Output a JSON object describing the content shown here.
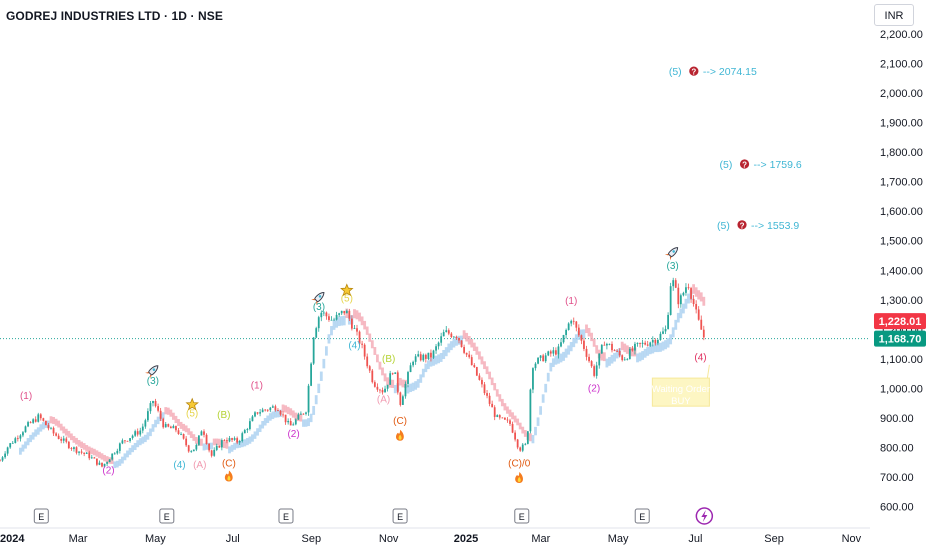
{
  "header": {
    "title": "GODREJ INDUSTRIES LTD · 1D · NSE",
    "currency": "INR"
  },
  "colors": {
    "up": "#26a69a",
    "down": "#ef5350",
    "ma_bull": "#a9cff0",
    "ma_bear": "#f4a9b4",
    "grid_dash": "#26a69a",
    "price_badge_down": "#f23645",
    "price_badge_last": "#089981",
    "target_text": "#3fb6d4"
  },
  "chart_data": {
    "type": "candlestick",
    "y_ticks": [
      "600.00",
      "700.00",
      "800.00",
      "900.00",
      "1,000.00",
      "1,100.00",
      "1,200.00",
      "1,300.00",
      "1,400.00",
      "1,500.00",
      "1,600.00",
      "1,700.00",
      "1,800.00",
      "1,900.00",
      "2,000.00",
      "2,100.00",
      "2,200.00"
    ],
    "x_ticks": [
      {
        "label": "2024",
        "x": "2024-01-01",
        "bold": true
      },
      {
        "label": "Mar",
        "x": "2024-03-01"
      },
      {
        "label": "May",
        "x": "2024-05-01"
      },
      {
        "label": "Jul",
        "x": "2024-07-01"
      },
      {
        "label": "Sep",
        "x": "2024-09-01"
      },
      {
        "label": "Nov",
        "x": "2024-11-01"
      },
      {
        "label": "2025",
        "x": "2025-01-01",
        "bold": true
      },
      {
        "label": "Mar",
        "x": "2025-03-01"
      },
      {
        "label": "May",
        "x": "2025-05-01"
      },
      {
        "label": "Jul",
        "x": "2025-07-01"
      },
      {
        "label": "Sep",
        "x": "2025-09-01"
      },
      {
        "label": "Nov",
        "x": "2025-11-01"
      }
    ],
    "ylim": [
      560,
      2210
    ],
    "price_path": [
      [
        "2023-12-22",
        690
      ],
      [
        "2024-01-05",
        800
      ],
      [
        "2024-01-20",
        870
      ],
      [
        "2024-01-30",
        905
      ],
      [
        "2024-02-10",
        850
      ],
      [
        "2024-02-25",
        800
      ],
      [
        "2024-03-10",
        770
      ],
      [
        "2024-03-20",
        735
      ],
      [
        "2024-04-05",
        820
      ],
      [
        "2024-04-20",
        860
      ],
      [
        "2024-04-29",
        960
      ],
      [
        "2024-05-08",
        870
      ],
      [
        "2024-05-18",
        860
      ],
      [
        "2024-05-28",
        790
      ],
      [
        "2024-06-02",
        800
      ],
      [
        "2024-06-07",
        870
      ],
      [
        "2024-06-14",
        770
      ],
      [
        "2024-06-24",
        830
      ],
      [
        "2024-07-05",
        820
      ],
      [
        "2024-07-20",
        920
      ],
      [
        "2024-08-05",
        940
      ],
      [
        "2024-08-15",
        870
      ],
      [
        "2024-08-28",
        930
      ],
      [
        "2024-09-03",
        1190
      ],
      [
        "2024-09-08",
        1260
      ],
      [
        "2024-09-18",
        1230
      ],
      [
        "2024-09-28",
        1265
      ],
      [
        "2024-10-10",
        1150
      ],
      [
        "2024-10-20",
        1020
      ],
      [
        "2024-10-28",
        990
      ],
      [
        "2024-11-05",
        1070
      ],
      [
        "2024-11-10",
        950
      ],
      [
        "2024-11-20",
        1100
      ],
      [
        "2024-12-05",
        1110
      ],
      [
        "2024-12-15",
        1190
      ],
      [
        "2024-12-25",
        1180
      ],
      [
        "2025-01-10",
        1040
      ],
      [
        "2025-01-25",
        900
      ],
      [
        "2025-02-05",
        880
      ],
      [
        "2025-02-12",
        795
      ],
      [
        "2025-02-18",
        810
      ],
      [
        "2025-02-22",
        1080
      ],
      [
        "2025-03-05",
        1110
      ],
      [
        "2025-03-15",
        1130
      ],
      [
        "2025-03-25",
        1240
      ],
      [
        "2025-04-05",
        1130
      ],
      [
        "2025-04-12",
        1050
      ],
      [
        "2025-04-20",
        1160
      ],
      [
        "2025-05-05",
        1100
      ],
      [
        "2025-05-15",
        1140
      ],
      [
        "2025-06-01",
        1170
      ],
      [
        "2025-06-08",
        1200
      ],
      [
        "2025-06-12",
        1380
      ],
      [
        "2025-06-18",
        1290
      ],
      [
        "2025-06-25",
        1360
      ],
      [
        "2025-07-03",
        1230
      ],
      [
        "2025-07-08",
        1168.7
      ]
    ],
    "last_price": {
      "value": 1168.7,
      "label": "1,168.70"
    },
    "marker_price": {
      "value": 1228.01,
      "label": "1,228.01"
    },
    "wave_labels": [
      {
        "text": "(1)",
        "x": "2024-01-20",
        "y": 965,
        "color": "#e0508a"
      },
      {
        "text": "(2)",
        "x": "2024-03-25",
        "y": 712,
        "color": "#cc33cc"
      },
      {
        "text": "(3)",
        "x": "2024-04-29",
        "y": 1015,
        "color": "#26a69a"
      },
      {
        "text": "(4)",
        "x": "2024-05-20",
        "y": 730,
        "color": "#3fb6d4"
      },
      {
        "text": "(5)",
        "x": "2024-05-30",
        "y": 905,
        "color": "#e6d44a"
      },
      {
        "text": "(A)",
        "x": "2024-06-05",
        "y": 730,
        "color": "#f19ab0"
      },
      {
        "text": "(B)",
        "x": "2024-06-24",
        "y": 900,
        "color": "#b5d334"
      },
      {
        "text": "(C)",
        "x": "2024-06-28",
        "y": 735,
        "color": "#e05a12"
      },
      {
        "text": "(1)",
        "x": "2024-07-20",
        "y": 1000,
        "color": "#e0508a"
      },
      {
        "text": "(2)",
        "x": "2024-08-18",
        "y": 835,
        "color": "#cc33cc"
      },
      {
        "text": "(3)",
        "x": "2024-09-07",
        "y": 1265,
        "color": "#26a69a"
      },
      {
        "text": "(5)",
        "x": "2024-09-29",
        "y": 1295,
        "color": "#e6d44a"
      },
      {
        "text": "(4)",
        "x": "2024-10-05",
        "y": 1135,
        "color": "#3fb6d4"
      },
      {
        "text": "(B)",
        "x": "2024-11-01",
        "y": 1090,
        "color": "#b5d334"
      },
      {
        "text": "(A)",
        "x": "2024-10-28",
        "y": 952,
        "color": "#f19ab0"
      },
      {
        "text": "(C)",
        "x": "2024-11-10",
        "y": 880,
        "color": "#e05a12"
      },
      {
        "text": "(C)/0",
        "x": "2025-02-12",
        "y": 735,
        "color": "#e05a12"
      },
      {
        "text": "(1)",
        "x": "2025-03-25",
        "y": 1285,
        "color": "#e0508a"
      },
      {
        "text": "(2)",
        "x": "2025-04-12",
        "y": 990,
        "color": "#cc33cc"
      },
      {
        "text": "(3)",
        "x": "2025-06-13",
        "y": 1405,
        "color": "#26a69a"
      },
      {
        "text": "(4)",
        "x": "2025-07-05",
        "y": 1095,
        "color": "#e03060"
      }
    ],
    "target_labels": [
      {
        "prefix": "(5)",
        "text": "--> 2074.15",
        "x": "2025-06-10",
        "y": 2074.15
      },
      {
        "prefix": "(5)",
        "text": "--> 1759.6",
        "x": "2025-07-20",
        "y": 1759.6
      },
      {
        "prefix": "(5)",
        "text": "--> 1553.9",
        "x": "2025-07-18",
        "y": 1553.9
      }
    ],
    "events": [
      {
        "label": "E",
        "x": "2024-02-01"
      },
      {
        "label": "E",
        "x": "2024-05-10"
      },
      {
        "label": "E",
        "x": "2024-08-12"
      },
      {
        "label": "E",
        "x": "2024-11-10"
      },
      {
        "label": "E",
        "x": "2025-02-14"
      },
      {
        "label": "E",
        "x": "2025-05-20"
      }
    ],
    "note": {
      "text1": "Waiting Order",
      "text2": "BUY"
    }
  }
}
